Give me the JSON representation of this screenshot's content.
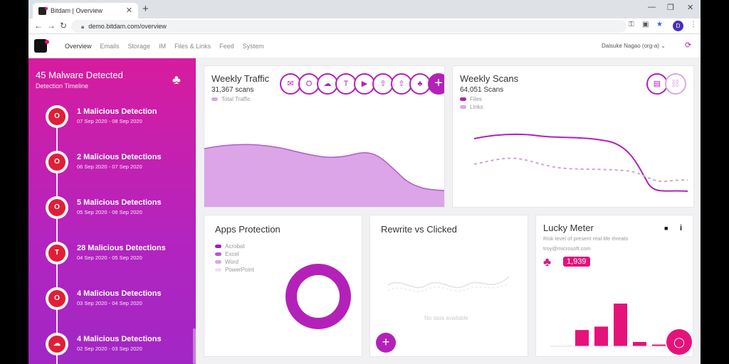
{
  "browser": {
    "tab_title": "Bitdam | Overview",
    "tab_close": "✕",
    "new_tab": "+",
    "url": "demo.bitdam.com/overview",
    "avatar_letter": "D"
  },
  "nav": {
    "items": [
      {
        "label": "Overview",
        "active": true
      },
      {
        "label": "Emails",
        "active": false
      },
      {
        "label": "Storage",
        "active": false
      },
      {
        "label": "IM",
        "active": false
      },
      {
        "label": "Files & Links",
        "active": false
      },
      {
        "label": "Feed",
        "active": false
      },
      {
        "label": "System",
        "active": false
      }
    ],
    "user": "Daisuke Nagao (org-a)"
  },
  "timeline": {
    "title": "45 Malware Detected",
    "subtitle": "Detection Timeline",
    "items": [
      {
        "title": "1 Malicious Detection",
        "dates": "07 Sep 2020 - 08 Sep 2020",
        "icon": "outlook-icon",
        "glyph": "O"
      },
      {
        "title": "2 Malicious Detections",
        "dates": "06 Sep 2020 - 07 Sep 2020",
        "icon": "outlook-icon",
        "glyph": "O"
      },
      {
        "title": "5 Malicious Detections",
        "dates": "05 Sep 2020 - 06 Sep 2020",
        "icon": "outlook-icon",
        "glyph": "O"
      },
      {
        "title": "28 Malicious Detections",
        "dates": "04 Sep 2020 - 05 Sep 2020",
        "icon": "teams-icon",
        "glyph": "T"
      },
      {
        "title": "4 Malicious Detections",
        "dates": "03 Sep 2020 - 04 Sep 2020",
        "icon": "outlook-icon",
        "glyph": "O"
      },
      {
        "title": "4 Malicious Detections",
        "dates": "02 Sep 2020 - 03 Sep 2020",
        "icon": "cloud-upload-icon",
        "glyph": "☁"
      }
    ]
  },
  "weekly_traffic": {
    "title": "Weekly Traffic",
    "value": "31,367 scans",
    "legend": [
      {
        "label": "Total Traffic",
        "color": "#dba5e8"
      }
    ],
    "channel_icons": [
      "email-icon",
      "outlook-icon",
      "onedrive-icon",
      "teams-icon",
      "video-icon",
      "cloud-upload-icon",
      "cloud-upload-icon",
      "clover-icon",
      "plus-icon"
    ],
    "icon_glyphs": [
      "✉",
      "O",
      "☁",
      "T",
      "▶",
      "⇧",
      "⇧",
      "♣",
      "+"
    ]
  },
  "weekly_scans": {
    "title": "Weekly Scans",
    "value": "64,051 Scans",
    "legend": [
      {
        "label": "Files",
        "color": "#b321b9"
      },
      {
        "label": "Links",
        "color": "#d9a9e3"
      }
    ],
    "icon_glyphs": [
      "▤",
      "⛓"
    ]
  },
  "apps_protection": {
    "title": "Apps Protection",
    "legend": [
      {
        "label": "Acrobat",
        "color": "#9c1fb8"
      },
      {
        "label": "Excel",
        "color": "#b55bcc"
      },
      {
        "label": "Word",
        "color": "#d9a9e3"
      },
      {
        "label": "PowerPoint",
        "color": "#f1def4"
      }
    ],
    "donut_color": "#b321b9"
  },
  "rewrite_clicked": {
    "title": "Rewrite vs Clicked",
    "empty_text": "No data available",
    "add": "+"
  },
  "lucky_meter": {
    "title": "Lucky Meter",
    "subtitle": "Risk level of present real-life threats",
    "email": "troy@microsoft.com",
    "score": "1,939",
    "bars": [
      0,
      0.38,
      0.46,
      1.0,
      0.1,
      0.04
    ],
    "stop_glyph": "■",
    "info_glyph": "i"
  }
}
